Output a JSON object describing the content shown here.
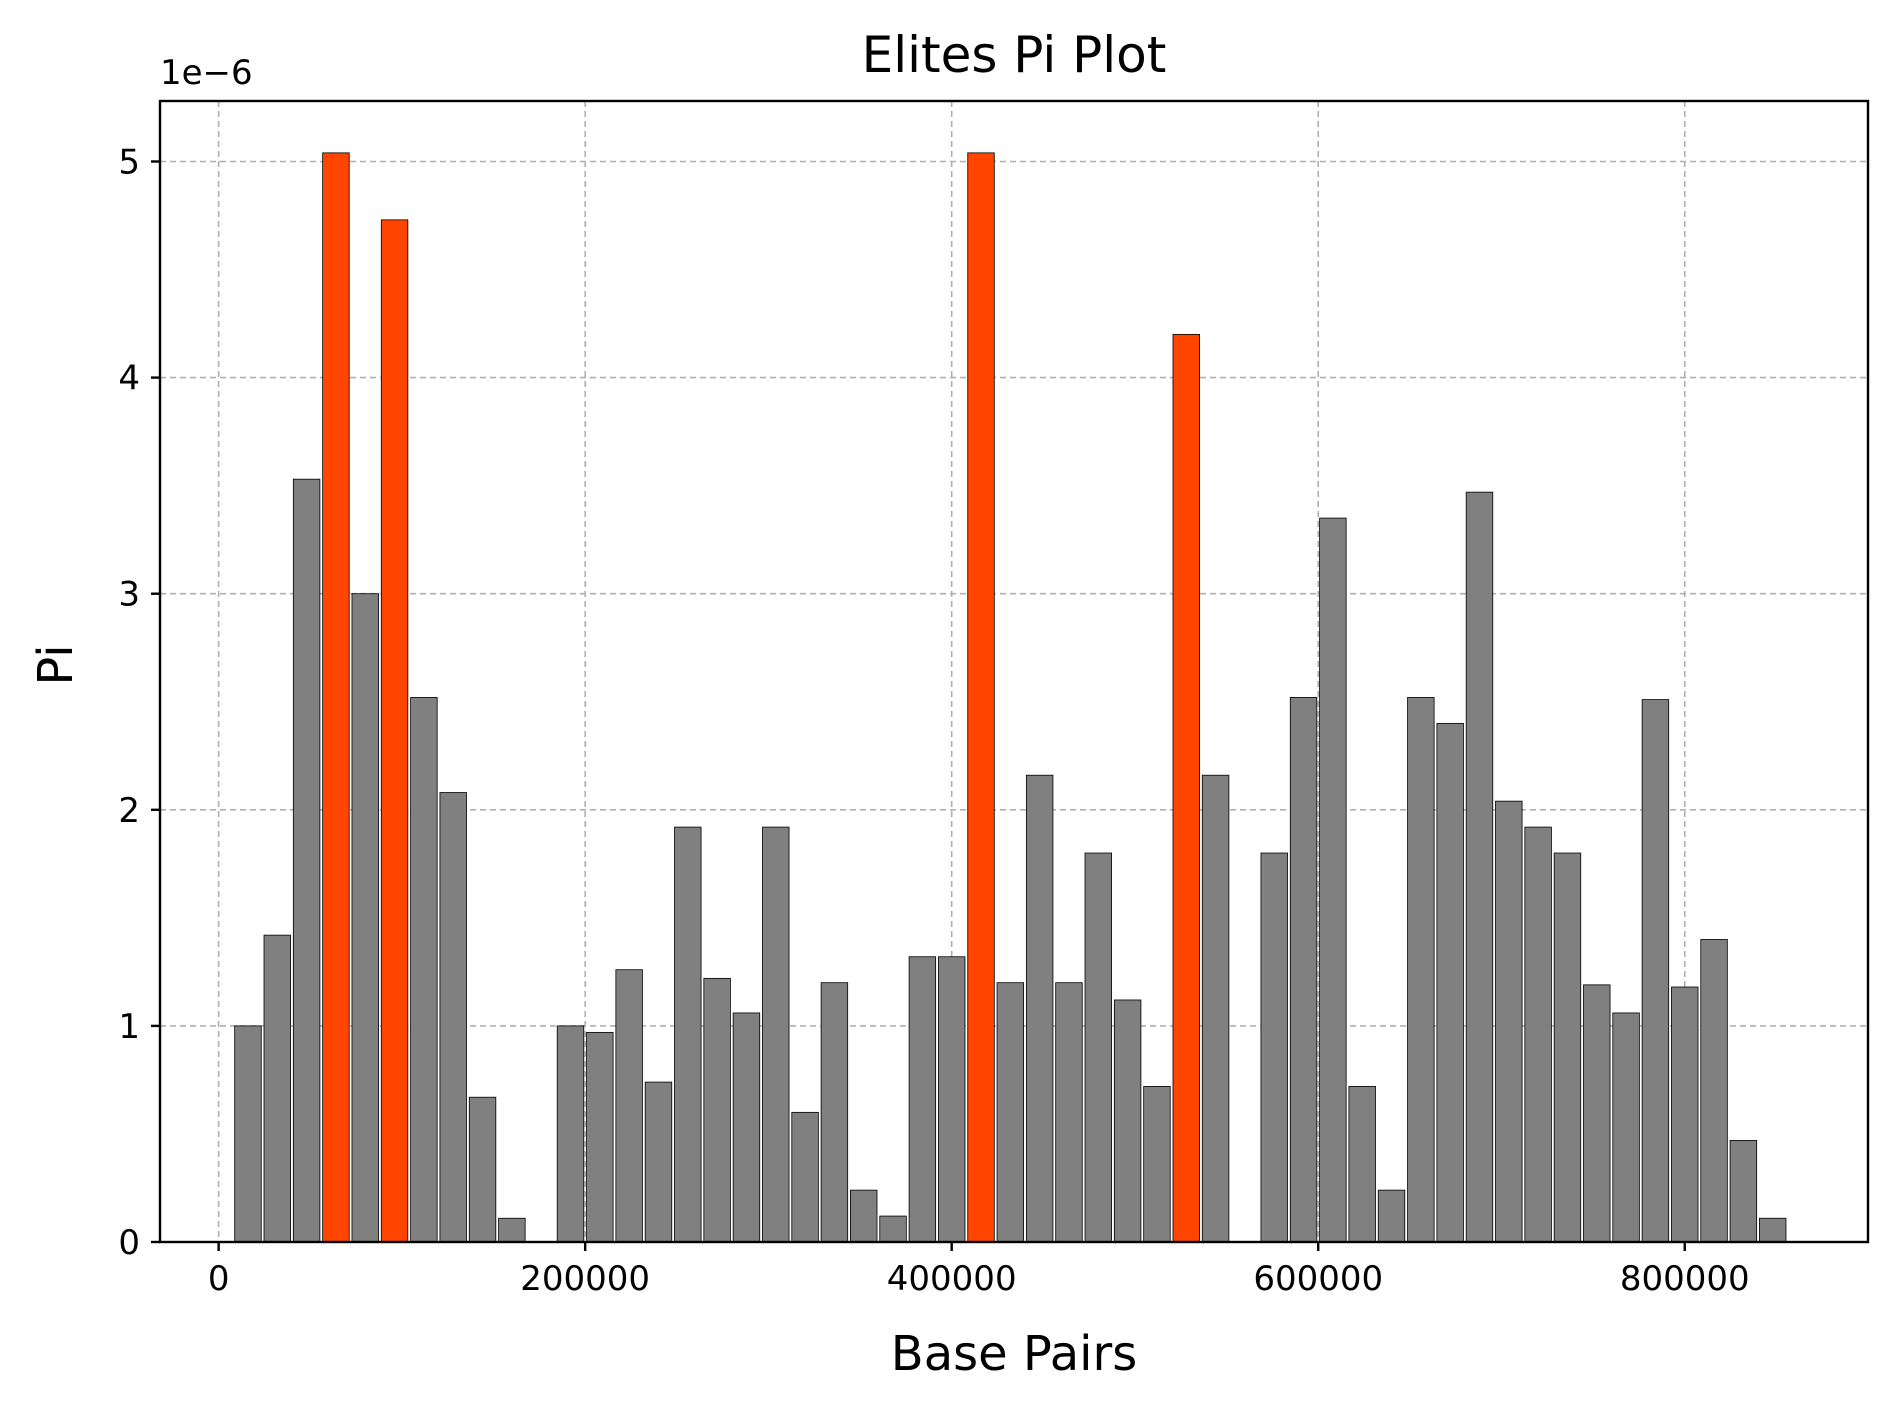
{
  "chart_data": {
    "type": "bar",
    "title": "Elites Pi Plot",
    "xlabel": "Base Pairs",
    "ylabel": "Pi",
    "y_scale_label": "1e−6",
    "y_scale": 1e-06,
    "xlim": [
      -32000,
      900000
    ],
    "ylim": [
      0,
      5.28
    ],
    "xticks": [
      0,
      200000,
      400000,
      600000,
      800000
    ],
    "yticks": [
      0,
      1,
      2,
      3,
      4,
      5
    ],
    "grid": true,
    "bar_width": 14500,
    "colors": {
      "normal": "#808080",
      "elite": "#ff4500"
    },
    "series": [
      {
        "values": [
          {
            "x": 16000,
            "y": 1.0,
            "elite": false
          },
          {
            "x": 32000,
            "y": 1.42,
            "elite": false
          },
          {
            "x": 48000,
            "y": 3.53,
            "elite": false
          },
          {
            "x": 64000,
            "y": 5.04,
            "elite": true
          },
          {
            "x": 80000,
            "y": 3.0,
            "elite": false
          },
          {
            "x": 96000,
            "y": 4.73,
            "elite": true
          },
          {
            "x": 112000,
            "y": 2.52,
            "elite": false
          },
          {
            "x": 128000,
            "y": 2.08,
            "elite": false
          },
          {
            "x": 144000,
            "y": 0.67,
            "elite": false
          },
          {
            "x": 160000,
            "y": 0.11,
            "elite": false
          },
          {
            "x": 192000,
            "y": 1.0,
            "elite": false
          },
          {
            "x": 208000,
            "y": 0.97,
            "elite": false
          },
          {
            "x": 224000,
            "y": 1.26,
            "elite": false
          },
          {
            "x": 240000,
            "y": 0.74,
            "elite": false
          },
          {
            "x": 256000,
            "y": 1.92,
            "elite": false
          },
          {
            "x": 272000,
            "y": 1.22,
            "elite": false
          },
          {
            "x": 288000,
            "y": 1.06,
            "elite": false
          },
          {
            "x": 304000,
            "y": 1.92,
            "elite": false
          },
          {
            "x": 320000,
            "y": 0.6,
            "elite": false
          },
          {
            "x": 336000,
            "y": 1.2,
            "elite": false
          },
          {
            "x": 352000,
            "y": 0.24,
            "elite": false
          },
          {
            "x": 368000,
            "y": 0.12,
            "elite": false
          },
          {
            "x": 384000,
            "y": 1.32,
            "elite": false
          },
          {
            "x": 400000,
            "y": 1.32,
            "elite": false
          },
          {
            "x": 416000,
            "y": 5.04,
            "elite": true
          },
          {
            "x": 432000,
            "y": 1.2,
            "elite": false
          },
          {
            "x": 448000,
            "y": 2.16,
            "elite": false
          },
          {
            "x": 464000,
            "y": 1.2,
            "elite": false
          },
          {
            "x": 480000,
            "y": 1.8,
            "elite": false
          },
          {
            "x": 496000,
            "y": 1.12,
            "elite": false
          },
          {
            "x": 512000,
            "y": 0.72,
            "elite": false
          },
          {
            "x": 528000,
            "y": 4.2,
            "elite": true
          },
          {
            "x": 544000,
            "y": 2.16,
            "elite": false
          },
          {
            "x": 576000,
            "y": 1.8,
            "elite": false
          },
          {
            "x": 592000,
            "y": 2.52,
            "elite": false
          },
          {
            "x": 608000,
            "y": 3.35,
            "elite": false
          },
          {
            "x": 624000,
            "y": 0.72,
            "elite": false
          },
          {
            "x": 640000,
            "y": 0.24,
            "elite": false
          },
          {
            "x": 656000,
            "y": 2.52,
            "elite": false
          },
          {
            "x": 672000,
            "y": 2.4,
            "elite": false
          },
          {
            "x": 688000,
            "y": 3.47,
            "elite": false
          },
          {
            "x": 704000,
            "y": 2.04,
            "elite": false
          },
          {
            "x": 720000,
            "y": 1.92,
            "elite": false
          },
          {
            "x": 736000,
            "y": 1.8,
            "elite": false
          },
          {
            "x": 752000,
            "y": 1.19,
            "elite": false
          },
          {
            "x": 768000,
            "y": 1.06,
            "elite": false
          },
          {
            "x": 784000,
            "y": 2.51,
            "elite": false
          },
          {
            "x": 800000,
            "y": 1.18,
            "elite": false
          },
          {
            "x": 816000,
            "y": 1.4,
            "elite": false
          },
          {
            "x": 832000,
            "y": 0.47,
            "elite": false
          },
          {
            "x": 848000,
            "y": 0.11,
            "elite": false
          }
        ]
      }
    ]
  }
}
